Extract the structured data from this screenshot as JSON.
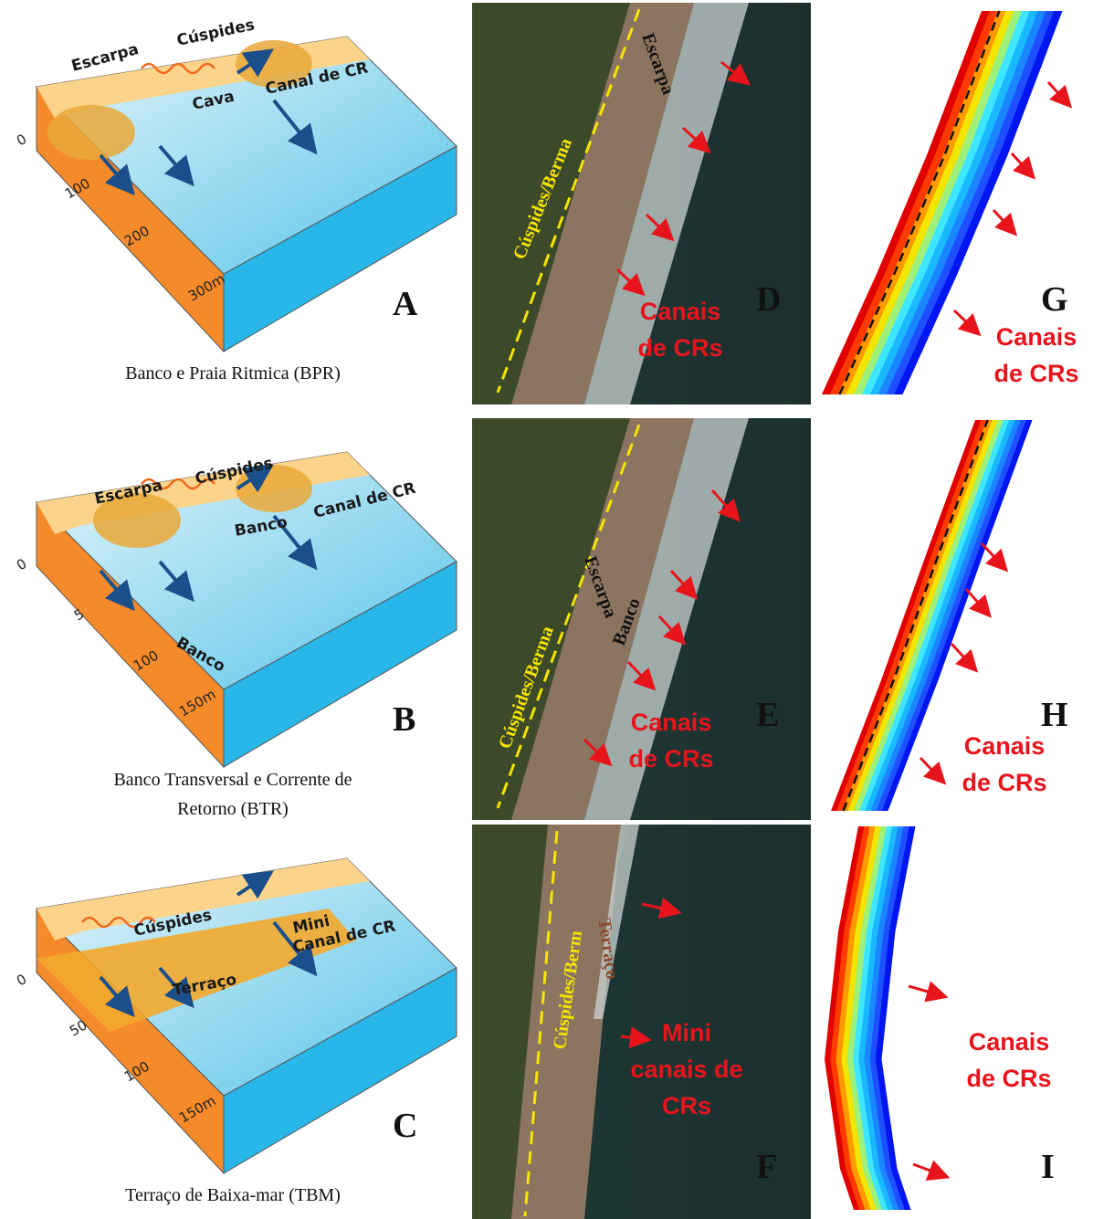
{
  "panels": [
    {
      "diagram": {
        "labels": [
          "Escarpa",
          "Cúspides",
          "Cava",
          "Canal de CR"
        ],
        "axis_ticks": [
          "0",
          "100",
          "200",
          "300m"
        ],
        "letter": "A",
        "caption": [
          "Banco e Praia Ritmica (BPR)"
        ]
      },
      "photo": {
        "labels": [
          "Escarpa",
          "Cúspides/Berma"
        ],
        "callout": [
          "Canais",
          "de CRs"
        ],
        "letter": "D"
      },
      "map": {
        "callout": [
          "Canais",
          "de CRs"
        ],
        "letter": "G"
      }
    },
    {
      "diagram": {
        "labels": [
          "Escarpa",
          "Cúspides",
          "Banco",
          "Canal de CR",
          "Banco"
        ],
        "axis_ticks": [
          "0",
          "5",
          "100",
          "150m"
        ],
        "letter": "B",
        "caption": [
          "Banco Transversal e Corrente de",
          "Retorno (BTR)"
        ]
      },
      "photo": {
        "labels": [
          "Escarpa",
          "Banco",
          "Cúspides/Berma"
        ],
        "callout": [
          "Canais",
          "de CRs"
        ],
        "letter": "E"
      },
      "map": {
        "callout": [
          "Canais",
          "de CRs"
        ],
        "letter": "H"
      }
    },
    {
      "diagram": {
        "labels": [
          "Cúspides",
          "Mini",
          "Canal de CR",
          "Terraço"
        ],
        "axis_ticks": [
          "0",
          "50",
          "100",
          "150m"
        ],
        "letter": "C",
        "caption": [
          "Terraço de Baixa-mar  (TBM)"
        ]
      },
      "photo": {
        "labels": [
          "Cúspides/Berm",
          "Terraço"
        ],
        "callout": [
          "Mini",
          "canais de",
          "CRs"
        ],
        "letter": "F"
      },
      "map": {
        "callout": [
          "Canais",
          "de CRs"
        ],
        "letter": "I"
      }
    }
  ]
}
